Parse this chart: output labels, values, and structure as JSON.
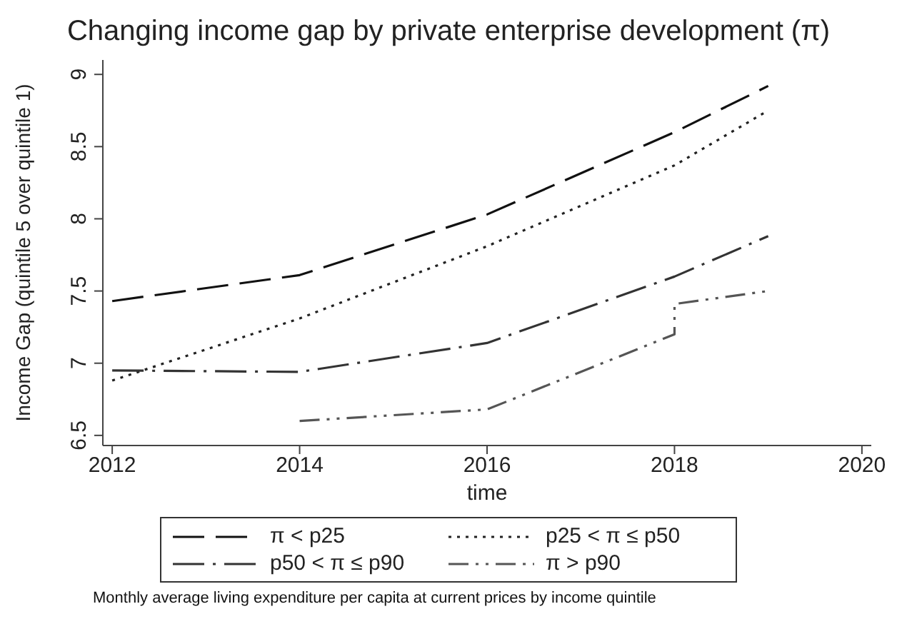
{
  "chart_data": {
    "type": "line",
    "title": "Changing income gap by private enterprise development (π)",
    "xlabel": "time",
    "ylabel": "Income Gap (quintile 5 over quintile 1)",
    "x": [
      2012,
      2014,
      2016,
      2018,
      2019
    ],
    "series": [
      {
        "name": "π < p25",
        "color": "#111111",
        "line_style": "dashed",
        "values": [
          7.43,
          7.61,
          8.03,
          8.6,
          8.92
        ]
      },
      {
        "name": "p25 < π ≤ p50",
        "color": "#222222",
        "line_style": "dotted",
        "values": [
          6.88,
          7.31,
          7.81,
          8.37,
          8.75
        ]
      },
      {
        "name": "p50 < π ≤ p90",
        "color": "#333333",
        "line_style": "dashdot",
        "values": [
          6.95,
          6.94,
          7.14,
          7.6,
          7.88
        ]
      },
      {
        "name": "π > p90",
        "color": "#555555",
        "line_style": "dashdot2",
        "x": [
          2014,
          2016,
          2018,
          2018,
          2019
        ],
        "values": [
          6.6,
          6.68,
          7.2,
          7.41,
          7.5
        ]
      }
    ],
    "xlim": [
      2011.9,
      2020.1
    ],
    "xticks": [
      2012,
      2014,
      2016,
      2018,
      2020
    ],
    "ylim": [
      6.43,
      9.1
    ],
    "yticks": [
      6.5,
      7,
      7.5,
      8,
      8.5,
      9
    ],
    "legend": "bottom",
    "marker": "none",
    "annotations": [
      "Monthly average living expenditure per capita at current prices by income quintile"
    ]
  }
}
